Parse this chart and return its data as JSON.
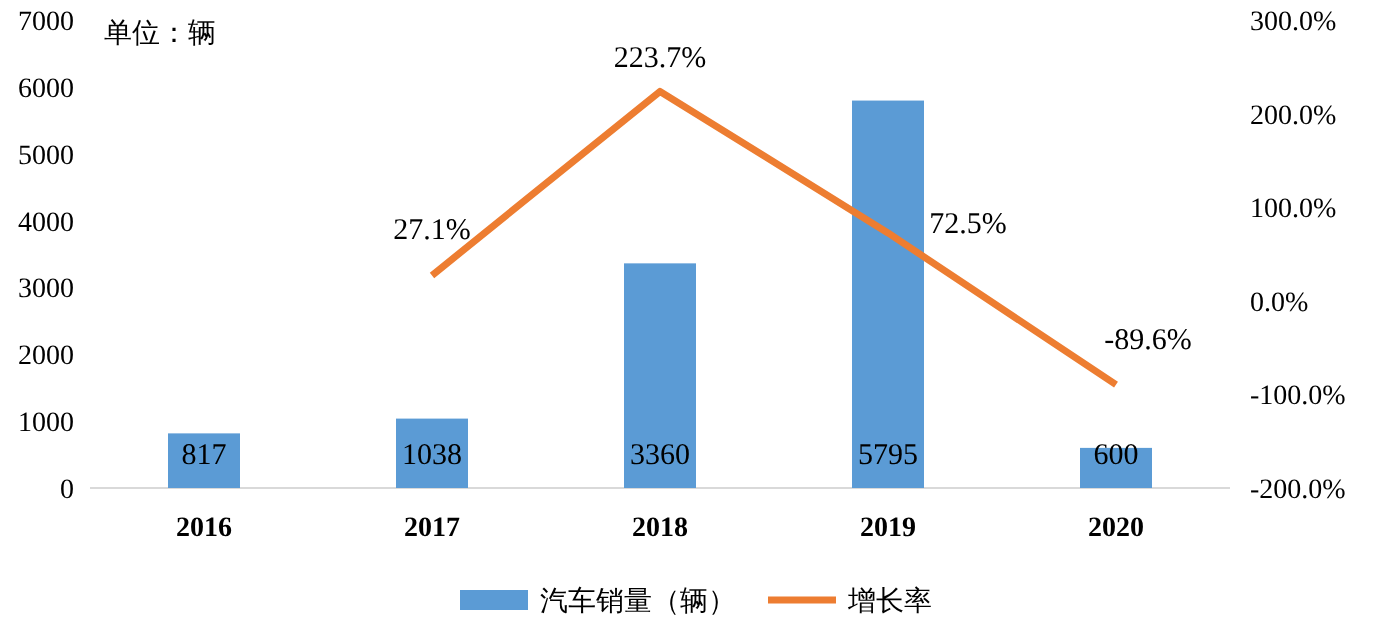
{
  "chart_data": {
    "type": "bar",
    "categories": [
      "2016",
      "2017",
      "2018",
      "2019",
      "2020"
    ],
    "series": [
      {
        "name": "汽车销量（辆）",
        "color": "#5b9bd5",
        "values": [
          817,
          1038,
          3360,
          5795,
          600
        ],
        "value_labels": [
          "817",
          "1038",
          "3360",
          "5795",
          "600"
        ]
      },
      {
        "name": "增长率",
        "type": "line",
        "axis": "y2",
        "color": "#ed7d31",
        "values": [
          null,
          27.1,
          223.7,
          72.5,
          -89.6
        ],
        "value_labels": [
          null,
          "27.1%",
          "223.7%",
          "72.5%",
          "-89.6%"
        ]
      }
    ],
    "ylim": [
      0,
      7000
    ],
    "yticks": [
      0,
      1000,
      2000,
      3000,
      4000,
      5000,
      6000,
      7000
    ],
    "y2lim": [
      -200,
      300
    ],
    "y2ticks": [
      {
        "value": -200,
        "label": "-200.0%"
      },
      {
        "value": -100,
        "label": "-100.0%"
      },
      {
        "value": 0,
        "label": "0.0%"
      },
      {
        "value": 100,
        "label": "100.0%"
      },
      {
        "value": 200,
        "label": "200.0%"
      },
      {
        "value": 300,
        "label": "300.0%"
      }
    ],
    "annotations": [
      "单位：辆"
    ],
    "legend": "bottom",
    "grid": false
  }
}
